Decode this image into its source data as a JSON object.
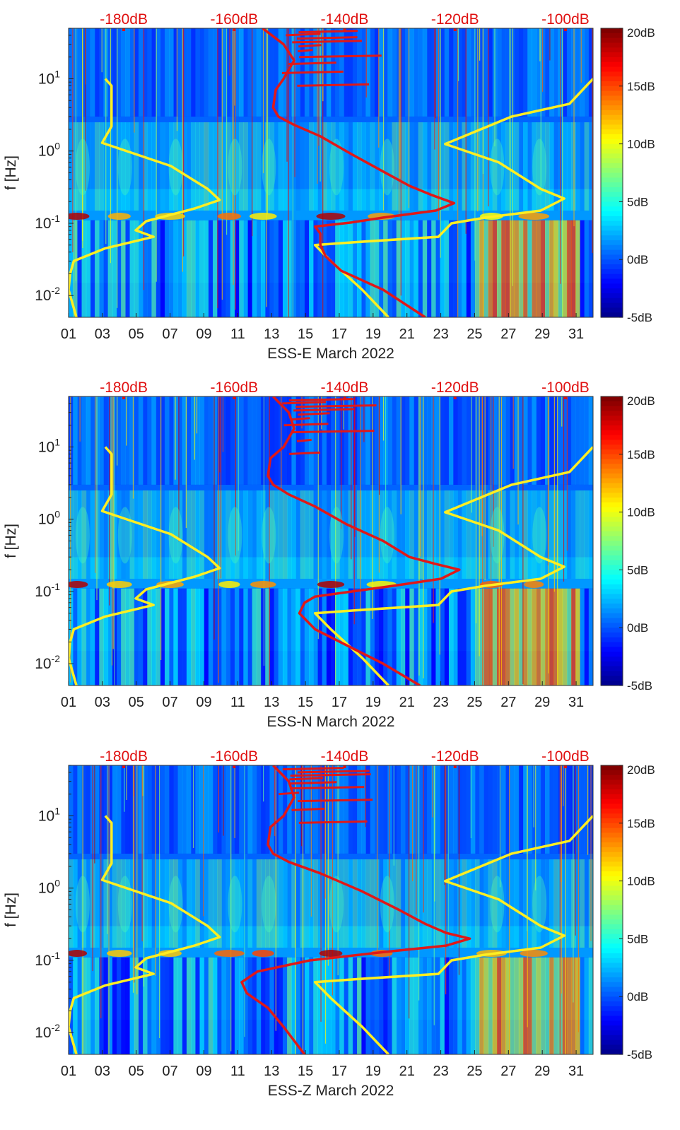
{
  "chart_data": [
    {
      "type": "heatmap",
      "panel": "east",
      "xlabel": "ESS-E March 2022",
      "ylabel": "f [Hz]",
      "x_ticks": [
        "01",
        "03",
        "05",
        "07",
        "09",
        "11",
        "13",
        "15",
        "17",
        "19",
        "21",
        "23",
        "25",
        "27",
        "29",
        "31"
      ],
      "x_range_days": [
        1,
        32
      ],
      "y_scale": "log",
      "y_range_hz": [
        0.005,
        50
      ],
      "y_ticks": [
        "10^-2",
        "10^-1",
        "10^0",
        "10^1"
      ],
      "top_db_labels": [
        "-180dB",
        "-160dB",
        "-140dB",
        "-120dB",
        "-100dB"
      ],
      "top_db_scale": [
        -190,
        -95
      ],
      "colorbar": {
        "labels": [
          "20dB",
          "15dB",
          "10dB",
          "5dB",
          "0dB",
          "-5dB"
        ],
        "range_db": [
          -5,
          20
        ],
        "colormap": "jet"
      },
      "series": [
        {
          "name": "noise-model-yellow",
          "color": "#ffee22",
          "points": [
            [
              0.07,
              10
            ],
            [
              0.082,
              8
            ],
            [
              0.082,
              2.2
            ],
            [
              0.064,
              1.3
            ],
            [
              0.195,
              0.62
            ],
            [
              0.265,
              0.3
            ],
            [
              0.288,
              0.21
            ],
            [
              0.24,
              0.16
            ],
            [
              0.148,
              0.107
            ],
            [
              0.128,
              0.08
            ],
            [
              0.162,
              0.065
            ],
            [
              0.07,
              0.045
            ],
            [
              0.01,
              0.03
            ],
            [
              0.003,
              0.02
            ],
            [
              0.0,
              0.012
            ],
            [
              0.015,
              0.005
            ]
          ]
        },
        {
          "name": "noise-model-yellow-right",
          "color": "#ffee22",
          "points": [
            [
              1.0,
              10
            ],
            [
              0.955,
              4.5
            ],
            [
              0.845,
              3.0
            ],
            [
              0.718,
              1.25
            ],
            [
              0.82,
              0.7
            ],
            [
              0.9,
              0.3
            ],
            [
              0.945,
              0.22
            ],
            [
              0.9,
              0.15
            ],
            [
              0.795,
              0.12
            ],
            [
              0.73,
              0.1
            ],
            [
              0.705,
              0.065
            ],
            [
              0.55,
              0.055
            ],
            [
              0.47,
              0.05
            ],
            [
              0.5,
              0.03
            ],
            [
              0.56,
              0.012
            ],
            [
              0.61,
              0.005
            ]
          ]
        },
        {
          "name": "noise-curve-red",
          "color": "#e01818",
          "points": [
            [
              0.37,
              50
            ],
            [
              0.41,
              30
            ],
            [
              0.43,
              18
            ],
            [
              0.41,
              10
            ],
            [
              0.395,
              7
            ],
            [
              0.39,
              4
            ],
            [
              0.4,
              3.0
            ],
            [
              0.43,
              2.3
            ],
            [
              0.48,
              1.6
            ],
            [
              0.54,
              0.9
            ],
            [
              0.6,
              0.52
            ],
            [
              0.65,
              0.33
            ],
            [
              0.69,
              0.25
            ],
            [
              0.735,
              0.19
            ],
            [
              0.7,
              0.15
            ],
            [
              0.6,
              0.12
            ],
            [
              0.54,
              0.103
            ],
            [
              0.47,
              0.09
            ],
            [
              0.48,
              0.072
            ],
            [
              0.48,
              0.05
            ],
            [
              0.49,
              0.035
            ],
            [
              0.52,
              0.022
            ],
            [
              0.6,
              0.012
            ],
            [
              0.68,
              0.005
            ]
          ]
        }
      ]
    },
    {
      "type": "heatmap",
      "panel": "north",
      "xlabel": "ESS-N March 2022",
      "ylabel": "f [Hz]",
      "x_ticks": [
        "01",
        "03",
        "05",
        "07",
        "09",
        "11",
        "13",
        "15",
        "17",
        "19",
        "21",
        "23",
        "25",
        "27",
        "29",
        "31"
      ],
      "x_range_days": [
        1,
        32
      ],
      "y_scale": "log",
      "y_range_hz": [
        0.005,
        50
      ],
      "y_ticks": [
        "10^-2",
        "10^-1",
        "10^0",
        "10^1"
      ],
      "top_db_labels": [
        "-180dB",
        "-160dB",
        "-140dB",
        "-120dB",
        "-100dB"
      ],
      "top_db_scale": [
        -190,
        -95
      ],
      "colorbar": {
        "labels": [
          "20dB",
          "15dB",
          "10dB",
          "5dB",
          "0dB",
          "-5dB"
        ],
        "range_db": [
          -5,
          20
        ],
        "colormap": "jet"
      },
      "series": [
        {
          "name": "noise-model-yellow",
          "color": "#ffee22",
          "points": [
            [
              0.07,
              10
            ],
            [
              0.082,
              8
            ],
            [
              0.082,
              2.2
            ],
            [
              0.064,
              1.3
            ],
            [
              0.195,
              0.62
            ],
            [
              0.265,
              0.3
            ],
            [
              0.288,
              0.21
            ],
            [
              0.24,
              0.16
            ],
            [
              0.148,
              0.107
            ],
            [
              0.128,
              0.08
            ],
            [
              0.162,
              0.065
            ],
            [
              0.07,
              0.045
            ],
            [
              0.01,
              0.03
            ],
            [
              0.003,
              0.02
            ],
            [
              0.0,
              0.012
            ],
            [
              0.015,
              0.005
            ]
          ]
        },
        {
          "name": "noise-model-yellow-right",
          "color": "#ffee22",
          "points": [
            [
              1.0,
              10
            ],
            [
              0.955,
              4.5
            ],
            [
              0.845,
              3.0
            ],
            [
              0.718,
              1.25
            ],
            [
              0.82,
              0.7
            ],
            [
              0.9,
              0.3
            ],
            [
              0.945,
              0.22
            ],
            [
              0.9,
              0.15
            ],
            [
              0.795,
              0.12
            ],
            [
              0.73,
              0.1
            ],
            [
              0.705,
              0.065
            ],
            [
              0.55,
              0.055
            ],
            [
              0.47,
              0.05
            ],
            [
              0.5,
              0.03
            ],
            [
              0.56,
              0.012
            ],
            [
              0.61,
              0.005
            ]
          ]
        },
        {
          "name": "noise-curve-red",
          "color": "#e01818",
          "points": [
            [
              0.39,
              50
            ],
            [
              0.42,
              30
            ],
            [
              0.43,
              18
            ],
            [
              0.41,
              10
            ],
            [
              0.385,
              7
            ],
            [
              0.38,
              4
            ],
            [
              0.39,
              3.0
            ],
            [
              0.42,
              2.2
            ],
            [
              0.47,
              1.5
            ],
            [
              0.53,
              0.85
            ],
            [
              0.6,
              0.5
            ],
            [
              0.65,
              0.3
            ],
            [
              0.7,
              0.24
            ],
            [
              0.745,
              0.2
            ],
            [
              0.71,
              0.15
            ],
            [
              0.62,
              0.12
            ],
            [
              0.54,
              0.1
            ],
            [
              0.47,
              0.085
            ],
            [
              0.45,
              0.07
            ],
            [
              0.44,
              0.05
            ],
            [
              0.47,
              0.03
            ],
            [
              0.53,
              0.018
            ],
            [
              0.6,
              0.01
            ],
            [
              0.67,
              0.005
            ]
          ]
        }
      ]
    },
    {
      "type": "heatmap",
      "panel": "vertical",
      "xlabel": "ESS-Z March 2022",
      "ylabel": "f [Hz]",
      "x_ticks": [
        "01",
        "03",
        "05",
        "07",
        "09",
        "11",
        "13",
        "15",
        "17",
        "19",
        "21",
        "23",
        "25",
        "27",
        "29",
        "31"
      ],
      "x_range_days": [
        1,
        32
      ],
      "y_scale": "log",
      "y_range_hz": [
        0.005,
        50
      ],
      "y_ticks": [
        "10^-2",
        "10^-1",
        "10^0",
        "10^1"
      ],
      "top_db_labels": [
        "-180dB",
        "-160dB",
        "-140dB",
        "-120dB",
        "-100dB"
      ],
      "top_db_scale": [
        -190,
        -95
      ],
      "colorbar": {
        "labels": [
          "20dB",
          "15dB",
          "10dB",
          "5dB",
          "0dB",
          "-5dB"
        ],
        "range_db": [
          -5,
          20
        ],
        "colormap": "jet"
      },
      "series": [
        {
          "name": "noise-model-yellow",
          "color": "#ffee22",
          "points": [
            [
              0.07,
              10
            ],
            [
              0.082,
              8
            ],
            [
              0.082,
              2.2
            ],
            [
              0.064,
              1.3
            ],
            [
              0.195,
              0.62
            ],
            [
              0.265,
              0.3
            ],
            [
              0.288,
              0.21
            ],
            [
              0.24,
              0.16
            ],
            [
              0.148,
              0.107
            ],
            [
              0.128,
              0.08
            ],
            [
              0.162,
              0.065
            ],
            [
              0.07,
              0.045
            ],
            [
              0.01,
              0.03
            ],
            [
              0.003,
              0.02
            ],
            [
              0.0,
              0.012
            ],
            [
              0.015,
              0.005
            ]
          ]
        },
        {
          "name": "noise-model-yellow-right",
          "color": "#ffee22",
          "points": [
            [
              1.0,
              10
            ],
            [
              0.955,
              4.5
            ],
            [
              0.845,
              3.0
            ],
            [
              0.718,
              1.25
            ],
            [
              0.82,
              0.7
            ],
            [
              0.9,
              0.3
            ],
            [
              0.945,
              0.22
            ],
            [
              0.9,
              0.15
            ],
            [
              0.795,
              0.12
            ],
            [
              0.73,
              0.1
            ],
            [
              0.705,
              0.065
            ],
            [
              0.55,
              0.055
            ],
            [
              0.47,
              0.05
            ],
            [
              0.5,
              0.03
            ],
            [
              0.56,
              0.012
            ],
            [
              0.61,
              0.005
            ]
          ]
        },
        {
          "name": "noise-curve-red",
          "color": "#e01818",
          "points": [
            [
              0.39,
              50
            ],
            [
              0.42,
              30
            ],
            [
              0.43,
              18
            ],
            [
              0.41,
              10
            ],
            [
              0.385,
              7
            ],
            [
              0.38,
              4
            ],
            [
              0.39,
              3.0
            ],
            [
              0.42,
              2.3
            ],
            [
              0.48,
              1.6
            ],
            [
              0.56,
              0.9
            ],
            [
              0.63,
              0.5
            ],
            [
              0.68,
              0.32
            ],
            [
              0.72,
              0.24
            ],
            [
              0.765,
              0.2
            ],
            [
              0.72,
              0.16
            ],
            [
              0.6,
              0.13
            ],
            [
              0.46,
              0.1
            ],
            [
              0.36,
              0.07
            ],
            [
              0.33,
              0.05
            ],
            [
              0.34,
              0.035
            ],
            [
              0.38,
              0.022
            ],
            [
              0.41,
              0.012
            ],
            [
              0.45,
              0.005
            ]
          ]
        }
      ]
    }
  ]
}
